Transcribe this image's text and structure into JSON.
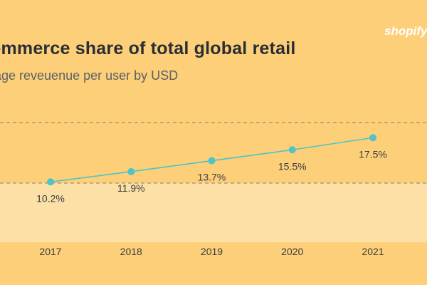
{
  "brand": {
    "logo_text": "shopify"
  },
  "chart_data": {
    "type": "line",
    "title": "ommerce share of total global retail",
    "subtitle": "rage reveuenue per user by USD",
    "categories": [
      "2017",
      "2018",
      "2019",
      "2020",
      "2021"
    ],
    "values": [
      10.2,
      11.9,
      13.7,
      15.5,
      17.5
    ],
    "data_labels": [
      "10.2%",
      "11.9%",
      "13.7%",
      "15.5%",
      "17.5%"
    ],
    "ylim": [
      6,
      22
    ],
    "reference_lines": [
      10,
      20
    ],
    "xlabel": "",
    "ylabel": "",
    "legend": "none",
    "colors": {
      "line": "#4fc3c7",
      "marker": "#4fc3c7",
      "reference_line": "#8a7f6a",
      "text": "#3a3d40"
    }
  }
}
